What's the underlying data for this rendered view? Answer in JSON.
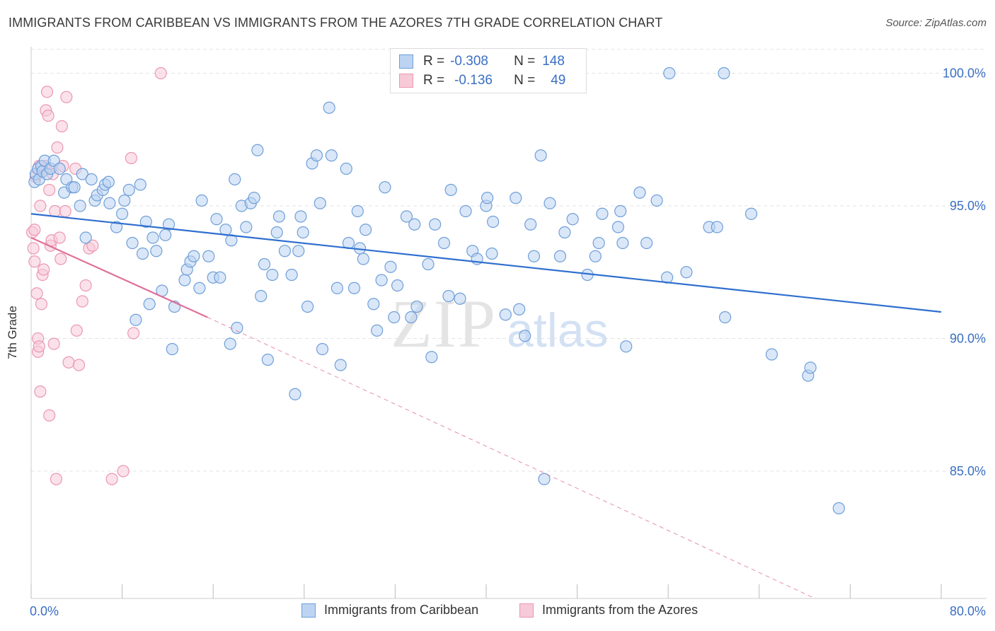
{
  "title": "IMMIGRANTS FROM CARIBBEAN VS IMMIGRANTS FROM THE AZORES 7TH GRADE CORRELATION CHART",
  "source": "Source: ZipAtlas.com",
  "watermark": {
    "zip": "ZIP",
    "atlas": "atlas"
  },
  "legend": {
    "rows": [
      {
        "r_label": "R =",
        "r_value": "-0.308",
        "n_label": "N =",
        "n_value": "148"
      },
      {
        "r_label": "R =",
        "r_value": "-0.136",
        "n_label": "N =",
        "n_value": "49"
      }
    ]
  },
  "bottom_legend": [
    "Immigrants from Caribbean",
    "Immigrants from the Azores"
  ],
  "colors": {
    "blue_fill": "#bcd4f2",
    "blue_stroke": "#6f9fd8",
    "blue_line": "#2f6fcf",
    "pink_fill": "#f7cad8",
    "pink_stroke": "#ec97b2",
    "pink_line": "#e0709a",
    "tick_text": "#3a6fc4",
    "grid": "#e3e3e3"
  },
  "chart_data": {
    "type": "scatter",
    "title": "IMMIGRANTS FROM CARIBBEAN VS IMMIGRANTS FROM THE AZORES 7TH GRADE CORRELATION CHART",
    "xlabel": "",
    "ylabel": "7th Grade",
    "xlim": [
      0,
      80
    ],
    "ylim": [
      80.2,
      101.0
    ],
    "x_tick_labels": [
      "0.0%",
      "80.0%"
    ],
    "y_ticks": [
      85,
      90,
      95,
      100
    ],
    "y_tick_labels": [
      "85.0%",
      "90.0%",
      "95.0%",
      "100.0%"
    ],
    "grid": true,
    "legend_placement": "top-center",
    "series": [
      {
        "name": "Immigrants from Caribbean",
        "color": "#6f9fd8",
        "trend": {
          "x": [
            0,
            80
          ],
          "y": [
            94.7,
            91.0
          ],
          "style": "solid"
        },
        "points": [
          [
            0.3,
            95.9
          ],
          [
            0.4,
            96.2
          ],
          [
            0.6,
            96.4
          ],
          [
            0.7,
            96.0
          ],
          [
            0.9,
            96.5
          ],
          [
            1.0,
            96.3
          ],
          [
            1.2,
            96.7
          ],
          [
            1.4,
            96.2
          ],
          [
            1.7,
            96.4
          ],
          [
            2.0,
            96.7
          ],
          [
            2.5,
            96.4
          ],
          [
            2.9,
            95.5
          ],
          [
            3.1,
            96.0
          ],
          [
            3.6,
            95.7
          ],
          [
            3.8,
            95.7
          ],
          [
            4.3,
            95.0
          ],
          [
            4.5,
            96.2
          ],
          [
            4.8,
            93.8
          ],
          [
            5.3,
            96.0
          ],
          [
            5.6,
            95.2
          ],
          [
            5.8,
            95.4
          ],
          [
            6.3,
            95.6
          ],
          [
            6.5,
            95.8
          ],
          [
            6.8,
            95.9
          ],
          [
            6.9,
            95.1
          ],
          [
            7.5,
            94.2
          ],
          [
            8.0,
            94.7
          ],
          [
            8.2,
            95.2
          ],
          [
            8.6,
            95.6
          ],
          [
            8.9,
            93.6
          ],
          [
            9.2,
            90.7
          ],
          [
            9.6,
            95.8
          ],
          [
            9.8,
            93.2
          ],
          [
            10.1,
            94.4
          ],
          [
            10.4,
            91.3
          ],
          [
            10.7,
            93.8
          ],
          [
            11.0,
            93.3
          ],
          [
            11.5,
            91.8
          ],
          [
            11.8,
            93.9
          ],
          [
            12.1,
            94.3
          ],
          [
            12.4,
            89.6
          ],
          [
            12.6,
            91.2
          ],
          [
            13.5,
            92.2
          ],
          [
            13.7,
            92.6
          ],
          [
            14.0,
            92.9
          ],
          [
            14.3,
            93.1
          ],
          [
            14.8,
            91.9
          ],
          [
            15.0,
            95.2
          ],
          [
            15.6,
            93.1
          ],
          [
            16.0,
            92.3
          ],
          [
            16.3,
            94.5
          ],
          [
            16.6,
            92.3
          ],
          [
            17.1,
            94.1
          ],
          [
            17.5,
            89.8
          ],
          [
            17.6,
            93.7
          ],
          [
            17.9,
            96.0
          ],
          [
            18.1,
            90.4
          ],
          [
            18.5,
            95.0
          ],
          [
            18.9,
            94.2
          ],
          [
            19.3,
            95.1
          ],
          [
            19.6,
            95.3
          ],
          [
            19.9,
            97.1
          ],
          [
            20.2,
            91.6
          ],
          [
            20.5,
            92.8
          ],
          [
            20.8,
            89.2
          ],
          [
            21.2,
            92.4
          ],
          [
            21.6,
            94.0
          ],
          [
            21.8,
            94.6
          ],
          [
            22.3,
            93.3
          ],
          [
            22.9,
            92.4
          ],
          [
            23.2,
            87.9
          ],
          [
            23.5,
            93.3
          ],
          [
            23.7,
            94.6
          ],
          [
            23.9,
            94.0
          ],
          [
            24.3,
            91.2
          ],
          [
            24.7,
            96.6
          ],
          [
            25.1,
            96.9
          ],
          [
            25.4,
            95.1
          ],
          [
            25.6,
            89.6
          ],
          [
            26.2,
            98.7
          ],
          [
            26.4,
            96.9
          ],
          [
            26.9,
            91.9
          ],
          [
            27.2,
            89.0
          ],
          [
            27.7,
            96.4
          ],
          [
            27.9,
            93.6
          ],
          [
            28.4,
            91.9
          ],
          [
            28.7,
            94.8
          ],
          [
            28.9,
            93.4
          ],
          [
            29.2,
            93.0
          ],
          [
            29.4,
            94.1
          ],
          [
            30.1,
            91.3
          ],
          [
            30.4,
            90.3
          ],
          [
            30.8,
            92.2
          ],
          [
            31.1,
            95.7
          ],
          [
            31.6,
            92.7
          ],
          [
            31.9,
            90.8
          ],
          [
            32.2,
            92.0
          ],
          [
            33.0,
            94.6
          ],
          [
            33.4,
            90.8
          ],
          [
            33.7,
            94.3
          ],
          [
            33.9,
            91.2
          ],
          [
            34.9,
            92.8
          ],
          [
            35.2,
            89.3
          ],
          [
            35.5,
            94.3
          ],
          [
            36.3,
            93.6
          ],
          [
            36.7,
            91.6
          ],
          [
            36.9,
            95.6
          ],
          [
            37.7,
            91.5
          ],
          [
            38.2,
            94.8
          ],
          [
            38.8,
            93.3
          ],
          [
            39.2,
            93.0
          ],
          [
            40.0,
            95.0
          ],
          [
            40.1,
            95.3
          ],
          [
            40.5,
            93.2
          ],
          [
            40.6,
            94.4
          ],
          [
            41.7,
            90.9
          ],
          [
            42.6,
            95.3
          ],
          [
            42.9,
            91.1
          ],
          [
            43.4,
            90.1
          ],
          [
            43.9,
            94.3
          ],
          [
            44.2,
            93.1
          ],
          [
            44.8,
            96.9
          ],
          [
            45.1,
            84.7
          ],
          [
            45.6,
            95.1
          ],
          [
            46.5,
            93.1
          ],
          [
            46.9,
            94.0
          ],
          [
            47.6,
            94.5
          ],
          [
            48.9,
            92.4
          ],
          [
            49.6,
            93.1
          ],
          [
            49.9,
            93.6
          ],
          [
            50.2,
            94.7
          ],
          [
            51.6,
            94.2
          ],
          [
            52.0,
            93.6
          ],
          [
            51.8,
            94.8
          ],
          [
            52.3,
            89.7
          ],
          [
            53.5,
            95.5
          ],
          [
            54.1,
            93.6
          ],
          [
            55.0,
            95.2
          ],
          [
            55.9,
            92.3
          ],
          [
            56.1,
            100.0
          ],
          [
            57.6,
            92.5
          ],
          [
            59.6,
            94.2
          ],
          [
            60.3,
            94.2
          ],
          [
            60.9,
            100.0
          ],
          [
            61.0,
            90.8
          ],
          [
            63.3,
            94.7
          ],
          [
            65.1,
            89.4
          ],
          [
            68.3,
            88.6
          ],
          [
            68.5,
            88.9
          ],
          [
            71.0,
            83.6
          ]
        ]
      },
      {
        "name": "Immigrants from the Azores",
        "color": "#ec97b2",
        "trend": {
          "x": [
            0,
            15.5
          ],
          "y": [
            93.8,
            90.8
          ],
          "style": "solid",
          "extension": {
            "x": [
              15.5,
              80
            ],
            "y": [
              90.8,
              78.0
            ],
            "style": "dashed"
          }
        },
        "points": [
          [
            0.1,
            94.0
          ],
          [
            0.2,
            93.4
          ],
          [
            0.3,
            92.9
          ],
          [
            0.3,
            94.1
          ],
          [
            0.5,
            91.7
          ],
          [
            0.6,
            89.5
          ],
          [
            0.6,
            90.0
          ],
          [
            0.7,
            89.7
          ],
          [
            0.8,
            88.0
          ],
          [
            0.8,
            95.0
          ],
          [
            0.9,
            91.3
          ],
          [
            1.0,
            92.4
          ],
          [
            1.1,
            92.6
          ],
          [
            1.2,
            96.5
          ],
          [
            1.3,
            98.6
          ],
          [
            1.4,
            99.3
          ],
          [
            1.5,
            98.4
          ],
          [
            1.6,
            87.1
          ],
          [
            1.6,
            95.6
          ],
          [
            1.7,
            93.5
          ],
          [
            1.8,
            93.7
          ],
          [
            1.9,
            96.2
          ],
          [
            2.0,
            89.8
          ],
          [
            2.1,
            94.8
          ],
          [
            2.2,
            84.7
          ],
          [
            2.3,
            97.2
          ],
          [
            2.5,
            93.8
          ],
          [
            2.6,
            93.0
          ],
          [
            2.7,
            98.0
          ],
          [
            2.8,
            96.5
          ],
          [
            3.0,
            94.8
          ],
          [
            3.1,
            99.1
          ],
          [
            3.3,
            89.1
          ],
          [
            4.0,
            90.3
          ],
          [
            4.2,
            89.0
          ],
          [
            4.5,
            91.4
          ],
          [
            4.8,
            92.0
          ],
          [
            5.1,
            93.4
          ],
          [
            5.4,
            93.5
          ],
          [
            7.1,
            84.7
          ],
          [
            8.1,
            85.0
          ],
          [
            8.8,
            96.8
          ],
          [
            9.0,
            90.2
          ],
          [
            11.4,
            100.0
          ],
          [
            0.4,
            96.1
          ],
          [
            0.7,
            96.5
          ],
          [
            1.3,
            96.4
          ],
          [
            0.9,
            96.5
          ],
          [
            3.9,
            96.4
          ]
        ]
      }
    ]
  }
}
